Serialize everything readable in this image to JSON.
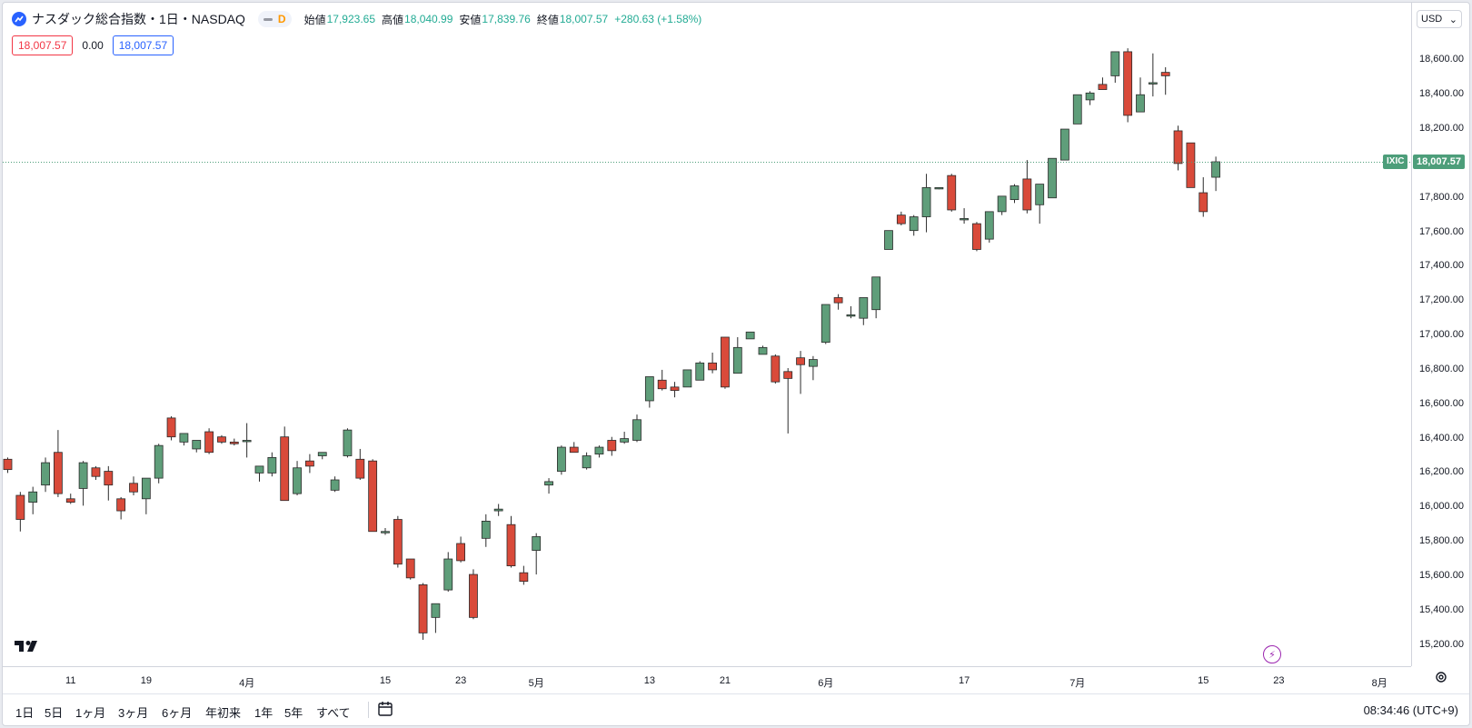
{
  "header": {
    "title": "ナスダック総合指数・1日・NASDAQ",
    "interval_badge": "D",
    "ohlc": [
      {
        "key": "始値",
        "value": "17,923.65"
      },
      {
        "key": "高値",
        "value": "18,040.99"
      },
      {
        "key": "安値",
        "value": "17,839.76"
      },
      {
        "key": "終値",
        "value": "18,007.57"
      }
    ],
    "change": "+280.63 (+1.58%)",
    "bid": "18,007.57",
    "spread": "0.00",
    "ask": "18,007.57"
  },
  "price_axis": {
    "currency": "USD",
    "last_price": "18,007.57",
    "symbol_label": "IXIC"
  },
  "colors": {
    "up": "#5f9e7a",
    "down": "#d94a3a",
    "last_line": "#4d9e7a"
  },
  "icons": [
    "tradingview-logo-icon",
    "lightning-icon",
    "gear-icon",
    "calendar-range-icon",
    "usd-chevron-icon"
  ],
  "bottom_bar": {
    "ranges": [
      "1日",
      "5日",
      "1ヶ月",
      "3ヶ月",
      "6ヶ月",
      "年初来",
      "1年",
      "5年",
      "すべて"
    ],
    "clock": "08:34:46 (UTC+9)"
  },
  "chart_data": {
    "type": "candlestick",
    "ylim": [
      15050,
      18750
    ],
    "yticks": [
      15200,
      15400,
      15600,
      15800,
      16000,
      16200,
      16400,
      16600,
      16800,
      17000,
      17200,
      17400,
      17600,
      17800,
      18000,
      18200,
      18400,
      18600
    ],
    "ytick_labels": [
      "15,200.00",
      "15,400.00",
      "15,600.00",
      "15,800.00",
      "16,000.00",
      "16,200.00",
      "16,400.00",
      "16,600.00",
      "16,800.00",
      "17,000.00",
      "17,200.00",
      "17,400.00",
      "17,600.00",
      "17,800.00",
      "18,000.00",
      "18,200.00",
      "18,400.00",
      "18,600.00"
    ],
    "x_tick_labels": [
      {
        "label": "11",
        "index": 5
      },
      {
        "label": "19",
        "index": 11
      },
      {
        "label": "4月",
        "index": 19
      },
      {
        "label": "15",
        "index": 30
      },
      {
        "label": "23",
        "index": 36
      },
      {
        "label": "5月",
        "index": 42
      },
      {
        "label": "13",
        "index": 51
      },
      {
        "label": "21",
        "index": 57
      },
      {
        "label": "6月",
        "index": 65
      },
      {
        "label": "17",
        "index": 76
      },
      {
        "label": "7月",
        "index": 85
      },
      {
        "label": "15",
        "index": 95
      },
      {
        "label": "23",
        "index": 101
      },
      {
        "label": "8月",
        "index": 109
      }
    ],
    "last_price": 18007.57,
    "candles": [
      [
        16280,
        16290,
        16200,
        16220
      ],
      [
        16070,
        16090,
        15860,
        15930
      ],
      [
        16030,
        16120,
        15960,
        16090
      ],
      [
        16130,
        16290,
        16090,
        16260
      ],
      [
        16320,
        16450,
        16060,
        16080
      ],
      [
        16050,
        16080,
        16020,
        16030
      ],
      [
        16110,
        16270,
        16010,
        16260
      ],
      [
        16230,
        16240,
        16160,
        16180
      ],
      [
        16210,
        16240,
        16040,
        16130
      ],
      [
        16050,
        16060,
        15930,
        15980
      ],
      [
        16140,
        16180,
        16070,
        16090
      ],
      [
        16050,
        16170,
        15960,
        16170
      ],
      [
        16170,
        16370,
        16140,
        16360
      ],
      [
        16520,
        16530,
        16390,
        16410
      ],
      [
        16380,
        16430,
        16360,
        16430
      ],
      [
        16340,
        16390,
        16320,
        16390
      ],
      [
        16440,
        16460,
        16310,
        16320
      ],
      [
        16410,
        16420,
        16370,
        16380
      ],
      [
        16380,
        16400,
        16360,
        16370
      ],
      [
        16390,
        16490,
        16290,
        16390
      ],
      [
        16200,
        16240,
        16150,
        16240
      ],
      [
        16200,
        16320,
        16180,
        16290
      ],
      [
        16410,
        16470,
        16040,
        16040
      ],
      [
        16080,
        16270,
        16070,
        16230
      ],
      [
        16270,
        16310,
        16200,
        16240
      ],
      [
        16300,
        16320,
        16280,
        16320
      ],
      [
        16100,
        16180,
        16090,
        16160
      ],
      [
        16300,
        16460,
        16290,
        16450
      ],
      [
        16280,
        16340,
        16160,
        16170
      ],
      [
        16270,
        16280,
        15860,
        15860
      ],
      [
        15860,
        15880,
        15840,
        15860
      ],
      [
        15930,
        15950,
        15650,
        15670
      ],
      [
        15700,
        15700,
        15580,
        15590
      ],
      [
        15550,
        15560,
        15230,
        15270
      ],
      [
        15360,
        15440,
        15270,
        15440
      ],
      [
        15520,
        15740,
        15510,
        15700
      ],
      [
        15790,
        15830,
        15680,
        15690
      ],
      [
        15610,
        15640,
        15350,
        15360
      ],
      [
        15820,
        15960,
        15770,
        15920
      ],
      [
        15980,
        16020,
        15950,
        15990
      ],
      [
        15900,
        15950,
        15650,
        15660
      ],
      [
        15620,
        15660,
        15550,
        15570
      ],
      [
        15750,
        15850,
        15610,
        15830
      ],
      [
        16130,
        16170,
        16080,
        16150
      ],
      [
        16210,
        16360,
        16190,
        16350
      ],
      [
        16350,
        16380,
        16320,
        16320
      ],
      [
        16230,
        16320,
        16220,
        16300
      ],
      [
        16310,
        16360,
        16290,
        16350
      ],
      [
        16390,
        16410,
        16300,
        16330
      ],
      [
        16380,
        16440,
        16370,
        16400
      ],
      [
        16390,
        16540,
        16380,
        16510
      ],
      [
        16620,
        16760,
        16580,
        16760
      ],
      [
        16740,
        16800,
        16680,
        16690
      ],
      [
        16700,
        16730,
        16640,
        16680
      ],
      [
        16700,
        16800,
        16700,
        16800
      ],
      [
        16740,
        16850,
        16740,
        16840
      ],
      [
        16840,
        16900,
        16780,
        16800
      ],
      [
        16990,
        16990,
        16690,
        16700
      ],
      [
        16780,
        16990,
        16780,
        16930
      ],
      [
        16980,
        17020,
        16980,
        17020
      ],
      [
        16890,
        16940,
        16890,
        16930
      ],
      [
        16880,
        16890,
        16720,
        16730
      ],
      [
        16790,
        16810,
        16430,
        16750
      ],
      [
        16870,
        16910,
        16660,
        16830
      ],
      [
        16820,
        16880,
        16740,
        16860
      ],
      [
        16960,
        17180,
        16950,
        17180
      ],
      [
        17220,
        17240,
        17150,
        17190
      ],
      [
        17120,
        17170,
        17100,
        17120
      ],
      [
        17100,
        17220,
        17060,
        17220
      ],
      [
        17150,
        17340,
        17100,
        17340
      ],
      [
        17500,
        17600,
        17500,
        17610
      ],
      [
        17700,
        17720,
        17640,
        17650
      ],
      [
        17610,
        17700,
        17580,
        17690
      ],
      [
        17690,
        17940,
        17600,
        17860
      ],
      [
        17860,
        17860,
        17850,
        17860
      ],
      [
        17930,
        17940,
        17720,
        17730
      ],
      [
        17680,
        17740,
        17650,
        17680
      ],
      [
        17650,
        17660,
        17490,
        17500
      ],
      [
        17560,
        17720,
        17540,
        17720
      ],
      [
        17720,
        17810,
        17700,
        17810
      ],
      [
        17790,
        17880,
        17770,
        17870
      ],
      [
        17910,
        18020,
        17710,
        17730
      ],
      [
        17760,
        17870,
        17650,
        17880
      ],
      [
        17800,
        18030,
        17800,
        18030
      ],
      [
        18020,
        18200,
        18020,
        18200
      ],
      [
        18230,
        18400,
        18230,
        18400
      ],
      [
        18370,
        18420,
        18340,
        18410
      ],
      [
        18460,
        18500,
        18430,
        18430
      ],
      [
        18510,
        18650,
        18470,
        18650
      ],
      [
        18650,
        18670,
        18240,
        18280
      ],
      [
        18300,
        18500,
        18300,
        18400
      ],
      [
        18470,
        18640,
        18390,
        18470
      ],
      [
        18530,
        18560,
        18400,
        18510
      ],
      [
        18190,
        18220,
        17960,
        18000
      ],
      [
        18120,
        18120,
        17860,
        17860
      ],
      [
        17830,
        17920,
        17690,
        17720
      ],
      [
        17920,
        18040,
        17840,
        18010
      ]
    ]
  }
}
